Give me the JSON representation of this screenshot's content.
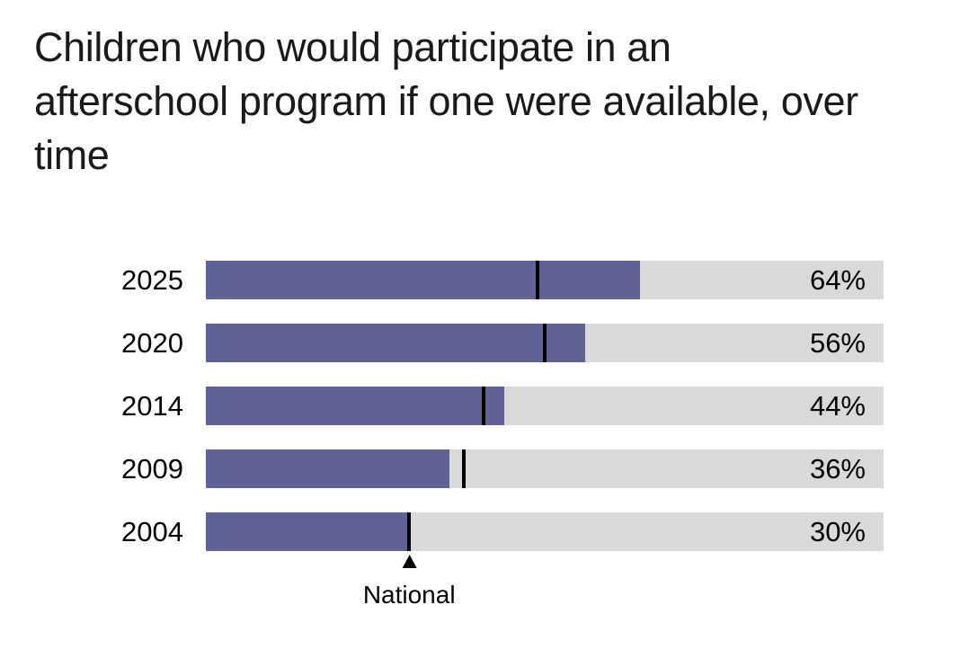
{
  "header": {
    "title_lines": [
      "Children who would participate in an",
      "afterschool program if one were available, over",
      "time"
    ]
  },
  "chart_data": {
    "type": "bar",
    "orientation": "horizontal",
    "title": "Children who would participate in an afterschool program if one were available, over time",
    "categories": [
      "2025",
      "2020",
      "2014",
      "2009",
      "2004"
    ],
    "series": [
      {
        "name": "Children who would participate",
        "values": [
          64,
          56,
          44,
          36,
          30
        ]
      },
      {
        "name": "National benchmark marker",
        "values": [
          49,
          50,
          41,
          38,
          30
        ]
      }
    ],
    "value_labels": [
      "64%",
      "56%",
      "44%",
      "36%",
      "30%"
    ],
    "xlim": [
      0,
      100
    ],
    "grid": false,
    "legend_position": "none",
    "annotation": {
      "label": "National",
      "value": 30,
      "row": "2004"
    },
    "colors": {
      "bar": "#5e6296",
      "track": "#d9d9d9",
      "marker": "#000000",
      "text": "#000000",
      "title": "#1a1a1a"
    }
  }
}
